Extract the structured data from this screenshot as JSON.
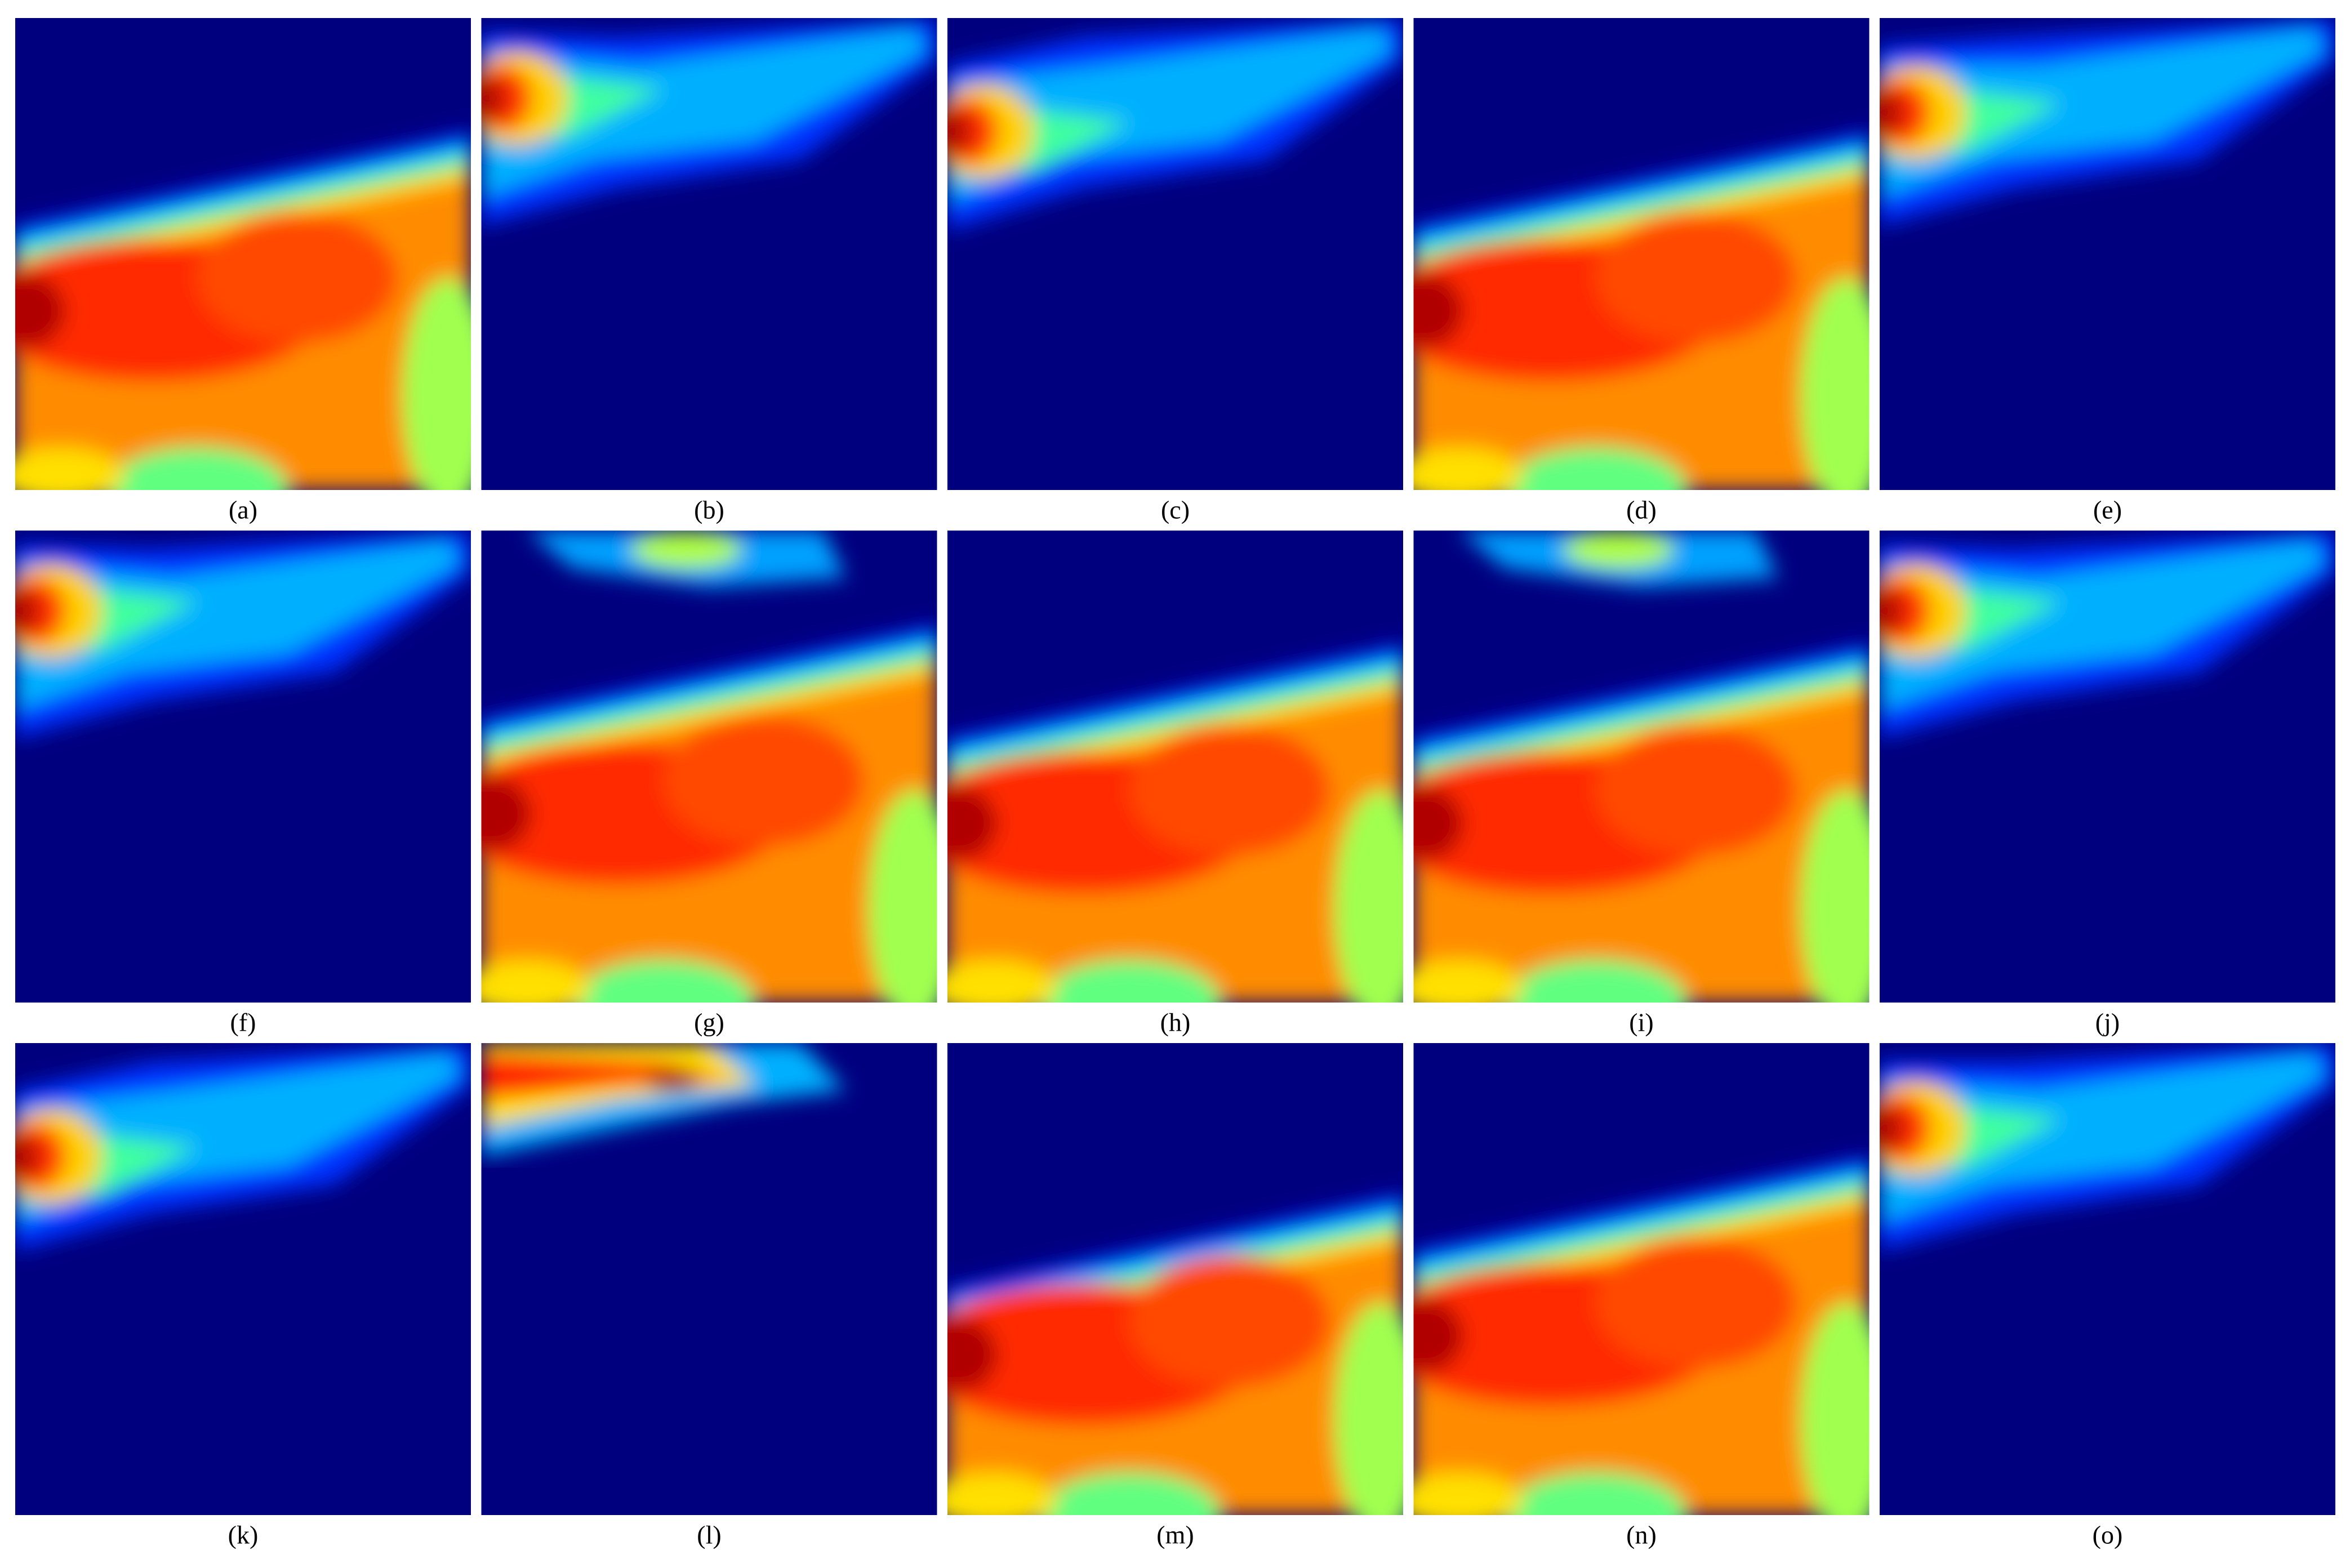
{
  "labels": [
    "(a)",
    "(b)",
    "(c)",
    "(d)",
    "(e)",
    "(f)",
    "(g)",
    "(h)",
    "(i)",
    "(j)",
    "(k)",
    "(l)",
    "(m)",
    "(n)",
    "(o)"
  ]
}
